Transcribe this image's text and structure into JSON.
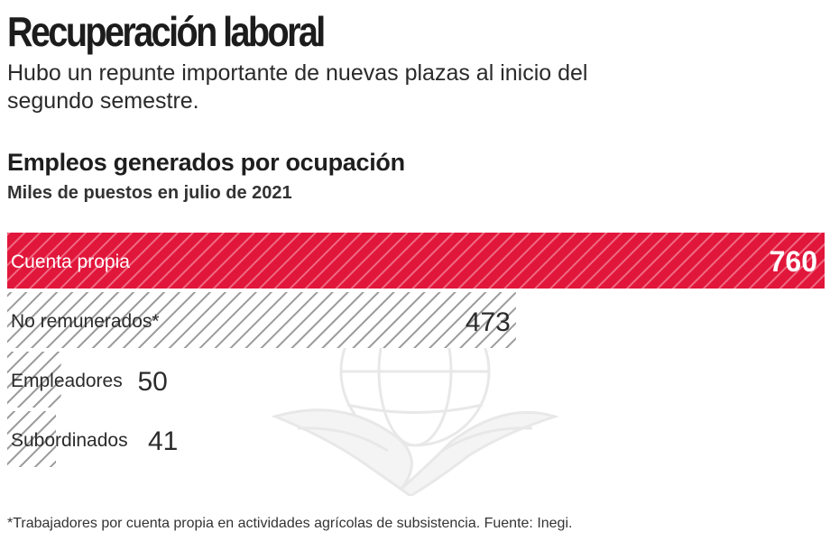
{
  "header": {
    "headline": "Recuperación laboral",
    "dek": "Hubo un repunte importante de nuevas plazas al inicio del segundo semestre."
  },
  "chart_data": {
    "type": "bar",
    "orientation": "horizontal",
    "title": "Empleos generados por ocupación",
    "subtitle": "Miles de puestos en julio de 2021",
    "categories": [
      "Cuenta propia",
      "No remunerados*",
      "Empleadores",
      "Subordinados"
    ],
    "values": [
      760,
      473,
      50,
      41
    ],
    "value_labels": [
      "760",
      "473",
      "50",
      "41"
    ],
    "xlim": [
      0,
      760
    ],
    "grid": false,
    "highlight_index": 0,
    "colors": {
      "highlight": "#e1163b",
      "hatch": "#9b9b9b",
      "label_on_highlight": "#ffffff",
      "label": "#2b2b2b"
    }
  },
  "footer": {
    "footnote": "*Trabajadores por cuenta propia en actividades agrícolas de subsistencia. Fuente: Inegi."
  },
  "decoration": {
    "watermark_icon": "eagle-globe-emblem-icon"
  }
}
